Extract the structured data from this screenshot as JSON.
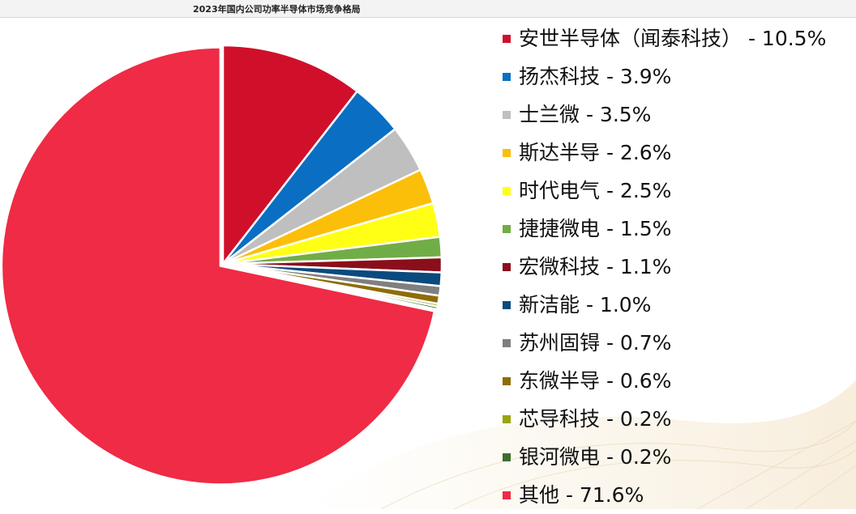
{
  "title": "2023年国内公司功率半导体市场竞争格局",
  "chart_data": {
    "type": "pie",
    "title": "2023年国内公司功率半导体市场竞争格局",
    "legend_position": "right",
    "start_angle_deg": 0,
    "direction": "clockwise",
    "slices": [
      {
        "label": "安世半导体（闻泰科技）",
        "legend": "安世半导体（闻泰科技） - 10.5%",
        "value": 10.5,
        "color": "#d0102a",
        "exploded": false
      },
      {
        "label": "扬杰科技",
        "legend": "扬杰科技 - 3.9%",
        "value": 3.9,
        "color": "#0a6fc2",
        "exploded": false
      },
      {
        "label": "士兰微",
        "legend": "士兰微 - 3.5%",
        "value": 3.5,
        "color": "#bfbfbf",
        "exploded": false
      },
      {
        "label": "斯达半导",
        "legend": "斯达半导 - 2.6%",
        "value": 2.6,
        "color": "#fbbf0a",
        "exploded": false
      },
      {
        "label": "时代电气",
        "legend": "时代电气 - 2.5%",
        "value": 2.5,
        "color": "#ffff16",
        "exploded": false
      },
      {
        "label": "捷捷微电",
        "legend": "捷捷微电 - 1.5%",
        "value": 1.5,
        "color": "#71ad47",
        "exploded": false
      },
      {
        "label": "宏微科技",
        "legend": "宏微科技 - 1.1%",
        "value": 1.1,
        "color": "#8b0e1b",
        "exploded": false
      },
      {
        "label": "新洁能",
        "legend": "新洁能 - 1.0%",
        "value": 1.0,
        "color": "#0b4a7e",
        "exploded": false
      },
      {
        "label": "苏州固锝",
        "legend": "苏州固锝 - 0.7%",
        "value": 0.7,
        "color": "#7f7f7f",
        "exploded": false
      },
      {
        "label": "东微半导",
        "legend": "东微半导 - 0.6%",
        "value": 0.6,
        "color": "#8f6c06",
        "exploded": false
      },
      {
        "label": "芯导科技",
        "legend": "芯导科技 - 0.2%",
        "value": 0.2,
        "color": "#9aa40b",
        "exploded": false
      },
      {
        "label": "银河微电",
        "legend": "银河微电 - 0.2%",
        "value": 0.2,
        "color": "#3f6d2d",
        "exploded": false
      },
      {
        "label": "其他",
        "legend": "其他 - 71.6%",
        "value": 71.6,
        "color": "#ef2b45",
        "exploded": true
      }
    ]
  }
}
